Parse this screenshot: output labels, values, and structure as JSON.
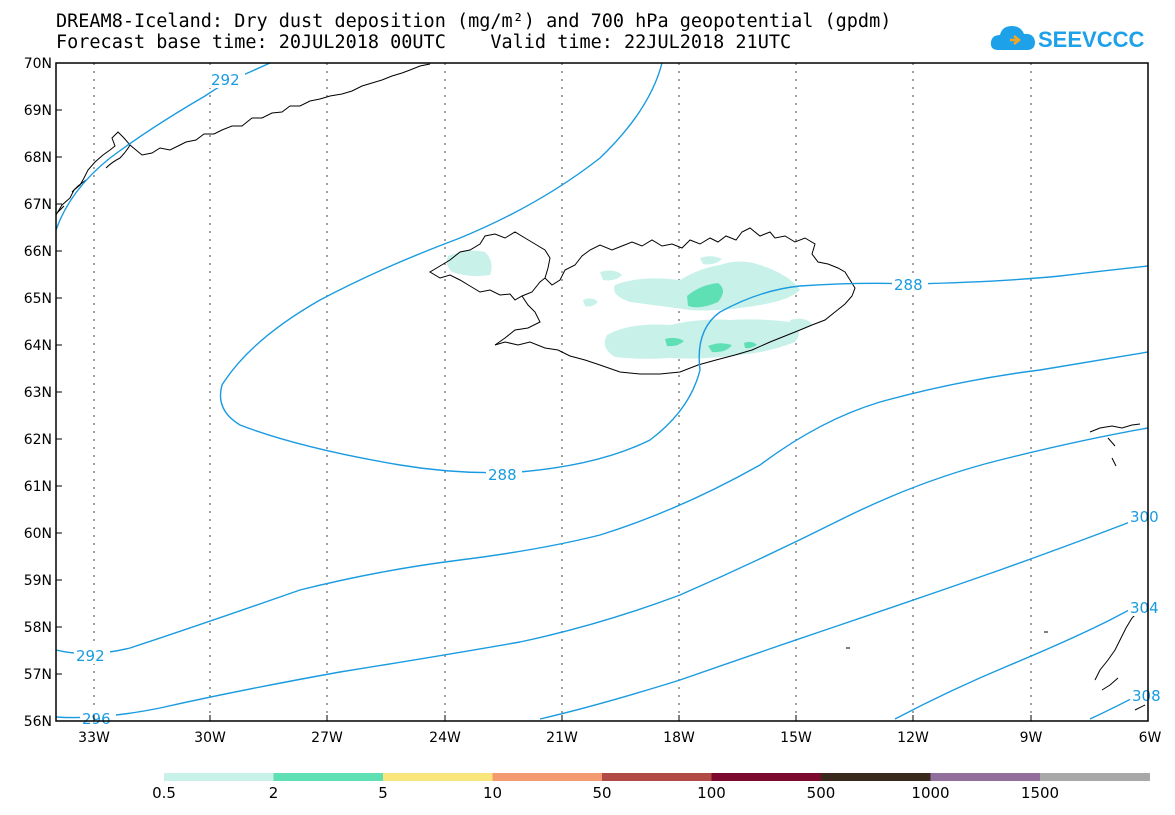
{
  "title_line1": "DREAM8-Iceland: Dry dust deposition (mg/m²) and 700 hPa geopotential (gpdm)",
  "title_line2": "Forecast base time: 20JUL2018 00UTC    Valid time: 22JUL2018 21UTC",
  "logo": {
    "text": "SEEVCCC",
    "icon": "cloud-icon",
    "color": "#1da1e8"
  },
  "map": {
    "lat_labels": [
      "70N",
      "69N",
      "68N",
      "67N",
      "66N",
      "65N",
      "64N",
      "63N",
      "62N",
      "61N",
      "60N",
      "59N",
      "58N",
      "57N",
      "56N"
    ],
    "lon_labels": [
      "33W",
      "30W",
      "27W",
      "24W",
      "21W",
      "18W",
      "15W",
      "12W",
      "9W",
      "6W"
    ],
    "contour_labels": [
      "292",
      "288",
      "288",
      "292",
      "296",
      "300",
      "304",
      "308"
    ],
    "contour_color": "#1a9be0",
    "coast_color": "#000000"
  },
  "colorbar": {
    "labels": [
      "0.5",
      "2",
      "5",
      "10",
      "50",
      "100",
      "500",
      "1000",
      "1500"
    ],
    "colors": [
      "#c8f1e9",
      "#5fe0b4",
      "#f8e67a",
      "#f39a70",
      "#b14a44",
      "#7d0a2e",
      "#3a2a1c",
      "#926e9c",
      "#a8a8a8"
    ]
  }
}
